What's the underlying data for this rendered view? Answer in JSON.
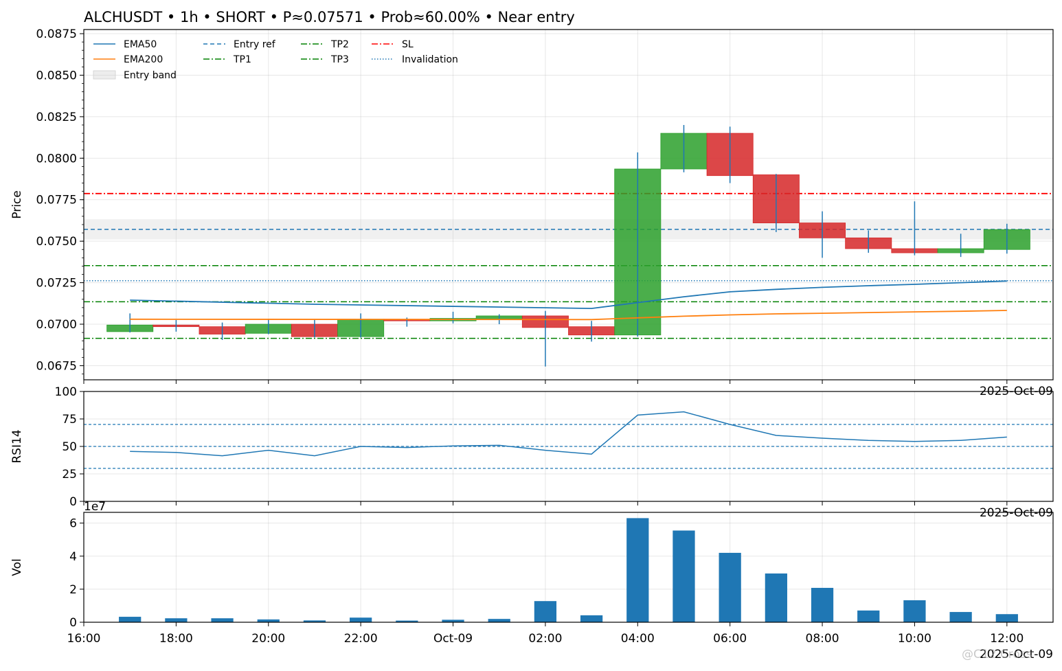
{
  "chart_data": {
    "title": "ALCHUSDT • 1h • SHORT • P≈0.07571 • Prob≈60.00% • Near entry",
    "x_ticks": [
      {
        "t": 0,
        "label": "16:00"
      },
      {
        "t": 2,
        "label": "18:00"
      },
      {
        "t": 4,
        "label": "20:00"
      },
      {
        "t": 6,
        "label": "22:00"
      },
      {
        "t": 8,
        "label": "Oct-09"
      },
      {
        "t": 10,
        "label": "02:00"
      },
      {
        "t": 12,
        "label": "04:00"
      },
      {
        "t": 14,
        "label": "06:00"
      },
      {
        "t": 16,
        "label": "08:00"
      },
      {
        "t": 18,
        "label": "10:00"
      },
      {
        "t": 20,
        "label": "12:00"
      }
    ],
    "x_offset_label": "2025-Oct-09",
    "xlim": [
      0,
      21.0
    ],
    "price": {
      "type": "candlestick",
      "ylabel": "Price",
      "ylim": [
        0.06665,
        0.08775
      ],
      "y_ticks": [
        "0.0675",
        "0.0700",
        "0.0725",
        "0.0750",
        "0.0775",
        "0.0800",
        "0.0825",
        "0.0850",
        "0.0875"
      ],
      "candles": [
        {
          "t": 1,
          "o": 0.06955,
          "h": 0.07065,
          "l": 0.0695,
          "c": 0.06995
        },
        {
          "t": 2,
          "o": 0.06995,
          "h": 0.07025,
          "l": 0.06955,
          "c": 0.06985
        },
        {
          "t": 3,
          "o": 0.06985,
          "h": 0.0701,
          "l": 0.06905,
          "c": 0.0694
        },
        {
          "t": 4,
          "o": 0.06945,
          "h": 0.0703,
          "l": 0.0694,
          "c": 0.07
        },
        {
          "t": 5,
          "o": 0.07,
          "h": 0.07025,
          "l": 0.0692,
          "c": 0.06925
        },
        {
          "t": 6,
          "o": 0.06925,
          "h": 0.07065,
          "l": 0.0692,
          "c": 0.0703
        },
        {
          "t": 7,
          "o": 0.0703,
          "h": 0.0704,
          "l": 0.06985,
          "c": 0.0702
        },
        {
          "t": 8,
          "o": 0.0702,
          "h": 0.07075,
          "l": 0.07005,
          "c": 0.07035
        },
        {
          "t": 9,
          "o": 0.0703,
          "h": 0.0706,
          "l": 0.07,
          "c": 0.0705
        },
        {
          "t": 10,
          "o": 0.0705,
          "h": 0.0708,
          "l": 0.06745,
          "c": 0.0698
        },
        {
          "t": 11,
          "o": 0.06985,
          "h": 0.0702,
          "l": 0.06895,
          "c": 0.06935
        },
        {
          "t": 12,
          "o": 0.06935,
          "h": 0.08035,
          "l": 0.06925,
          "c": 0.07935
        },
        {
          "t": 13,
          "o": 0.07935,
          "h": 0.082,
          "l": 0.07915,
          "c": 0.0815
        },
        {
          "t": 14,
          "o": 0.0815,
          "h": 0.0819,
          "l": 0.0785,
          "c": 0.07895
        },
        {
          "t": 15,
          "o": 0.079,
          "h": 0.07905,
          "l": 0.07555,
          "c": 0.0761
        },
        {
          "t": 16,
          "o": 0.0761,
          "h": 0.0768,
          "l": 0.074,
          "c": 0.0752
        },
        {
          "t": 17,
          "o": 0.0752,
          "h": 0.07565,
          "l": 0.0743,
          "c": 0.07455
        },
        {
          "t": 18,
          "o": 0.07455,
          "h": 0.0774,
          "l": 0.07415,
          "c": 0.0743
        },
        {
          "t": 19,
          "o": 0.0743,
          "h": 0.07545,
          "l": 0.07405,
          "c": 0.07455
        },
        {
          "t": 20,
          "o": 0.0745,
          "h": 0.07605,
          "l": 0.07425,
          "c": 0.0757
        }
      ],
      "series": [
        {
          "name": "EMA50",
          "color": "#1f77b4",
          "style": "solid",
          "t": [
            1,
            5,
            11,
            12,
            13,
            14,
            15,
            16,
            17,
            18,
            19,
            20
          ],
          "values": [
            0.07145,
            0.0712,
            0.07095,
            0.0713,
            0.07165,
            0.07195,
            0.0721,
            0.07222,
            0.07232,
            0.0724,
            0.0725,
            0.0726
          ]
        },
        {
          "name": "EMA200",
          "color": "#ff7f0e",
          "style": "solid",
          "t": [
            1,
            11,
            12,
            13,
            14,
            15,
            16,
            17,
            18,
            19,
            20
          ],
          "values": [
            0.0703,
            0.07028,
            0.07038,
            0.07048,
            0.07056,
            0.07062,
            0.07066,
            0.0707,
            0.07074,
            0.07078,
            0.07083
          ]
        }
      ],
      "hlines": [
        {
          "name": "Entry ref",
          "value": 0.07571,
          "color": "#1f77b4",
          "dash": "6,4"
        },
        {
          "name": "TP1",
          "value": 0.07135,
          "color": "#008000",
          "dash": "9,3,2,3"
        },
        {
          "name": "TP2",
          "value": 0.06915,
          "color": "#008000",
          "dash": "9,3,2,3"
        },
        {
          "name": "TP3",
          "value": 0.07353,
          "color": "#008000",
          "dash": "9,3,2,3"
        },
        {
          "name": "SL",
          "value": 0.07787,
          "color": "#ff0000",
          "dash": "9,3,2,3"
        },
        {
          "name": "Invalidation",
          "value": 0.07262,
          "color": "#1f77b4",
          "dash": "1.5,2.5"
        }
      ],
      "band": {
        "name": "Entry band",
        "low": 0.0751,
        "high": 0.07632,
        "color": "#d3d3d3"
      },
      "legend": "top-left",
      "legend_layout": [
        [
          "EMA50",
          "EMA200",
          "Entry band"
        ],
        [
          "Entry ref",
          "TP1"
        ],
        [
          "TP2",
          "TP3"
        ],
        [
          "SL",
          "Invalidation"
        ]
      ]
    },
    "rsi": {
      "type": "line",
      "ylabel": "RSI14",
      "ylim": [
        0,
        100
      ],
      "y_ticks": [
        "0",
        "25",
        "50",
        "75",
        "100"
      ],
      "t": [
        1,
        2,
        3,
        4,
        5,
        6,
        7,
        8,
        9,
        10,
        11,
        12,
        13,
        14,
        15,
        16,
        17,
        18,
        19,
        20
      ],
      "values": [
        45.5,
        44.5,
        41.5,
        46.5,
        41.5,
        50.0,
        49.0,
        50.5,
        51.0,
        46.5,
        43.0,
        78.5,
        81.5,
        70.0,
        60.0,
        57.5,
        55.5,
        54.5,
        55.5,
        58.5
      ],
      "color": "#1f77b4",
      "hlines": [
        70,
        50,
        30
      ]
    },
    "volume": {
      "type": "bar",
      "ylabel": "Vol",
      "scale_label": "1e7",
      "ylim": [
        0,
        6.65
      ],
      "y_ticks": [
        "0",
        "2",
        "4",
        "6"
      ],
      "t": [
        1,
        2,
        3,
        4,
        5,
        6,
        7,
        8,
        9,
        10,
        11,
        12,
        13,
        14,
        15,
        16,
        17,
        18,
        19,
        20
      ],
      "values": [
        0.33,
        0.24,
        0.24,
        0.17,
        0.11,
        0.28,
        0.1,
        0.15,
        0.2,
        1.28,
        0.42,
        6.3,
        5.55,
        4.2,
        2.95,
        2.08,
        0.71,
        1.33,
        0.62,
        0.49
      ],
      "color": "#1f77b4"
    },
    "colors": {
      "up": "#2ca02c",
      "down": "#d62728",
      "wick": "#1f77b4"
    }
  },
  "watermark": {
    "text": "@C12 Cross"
  }
}
